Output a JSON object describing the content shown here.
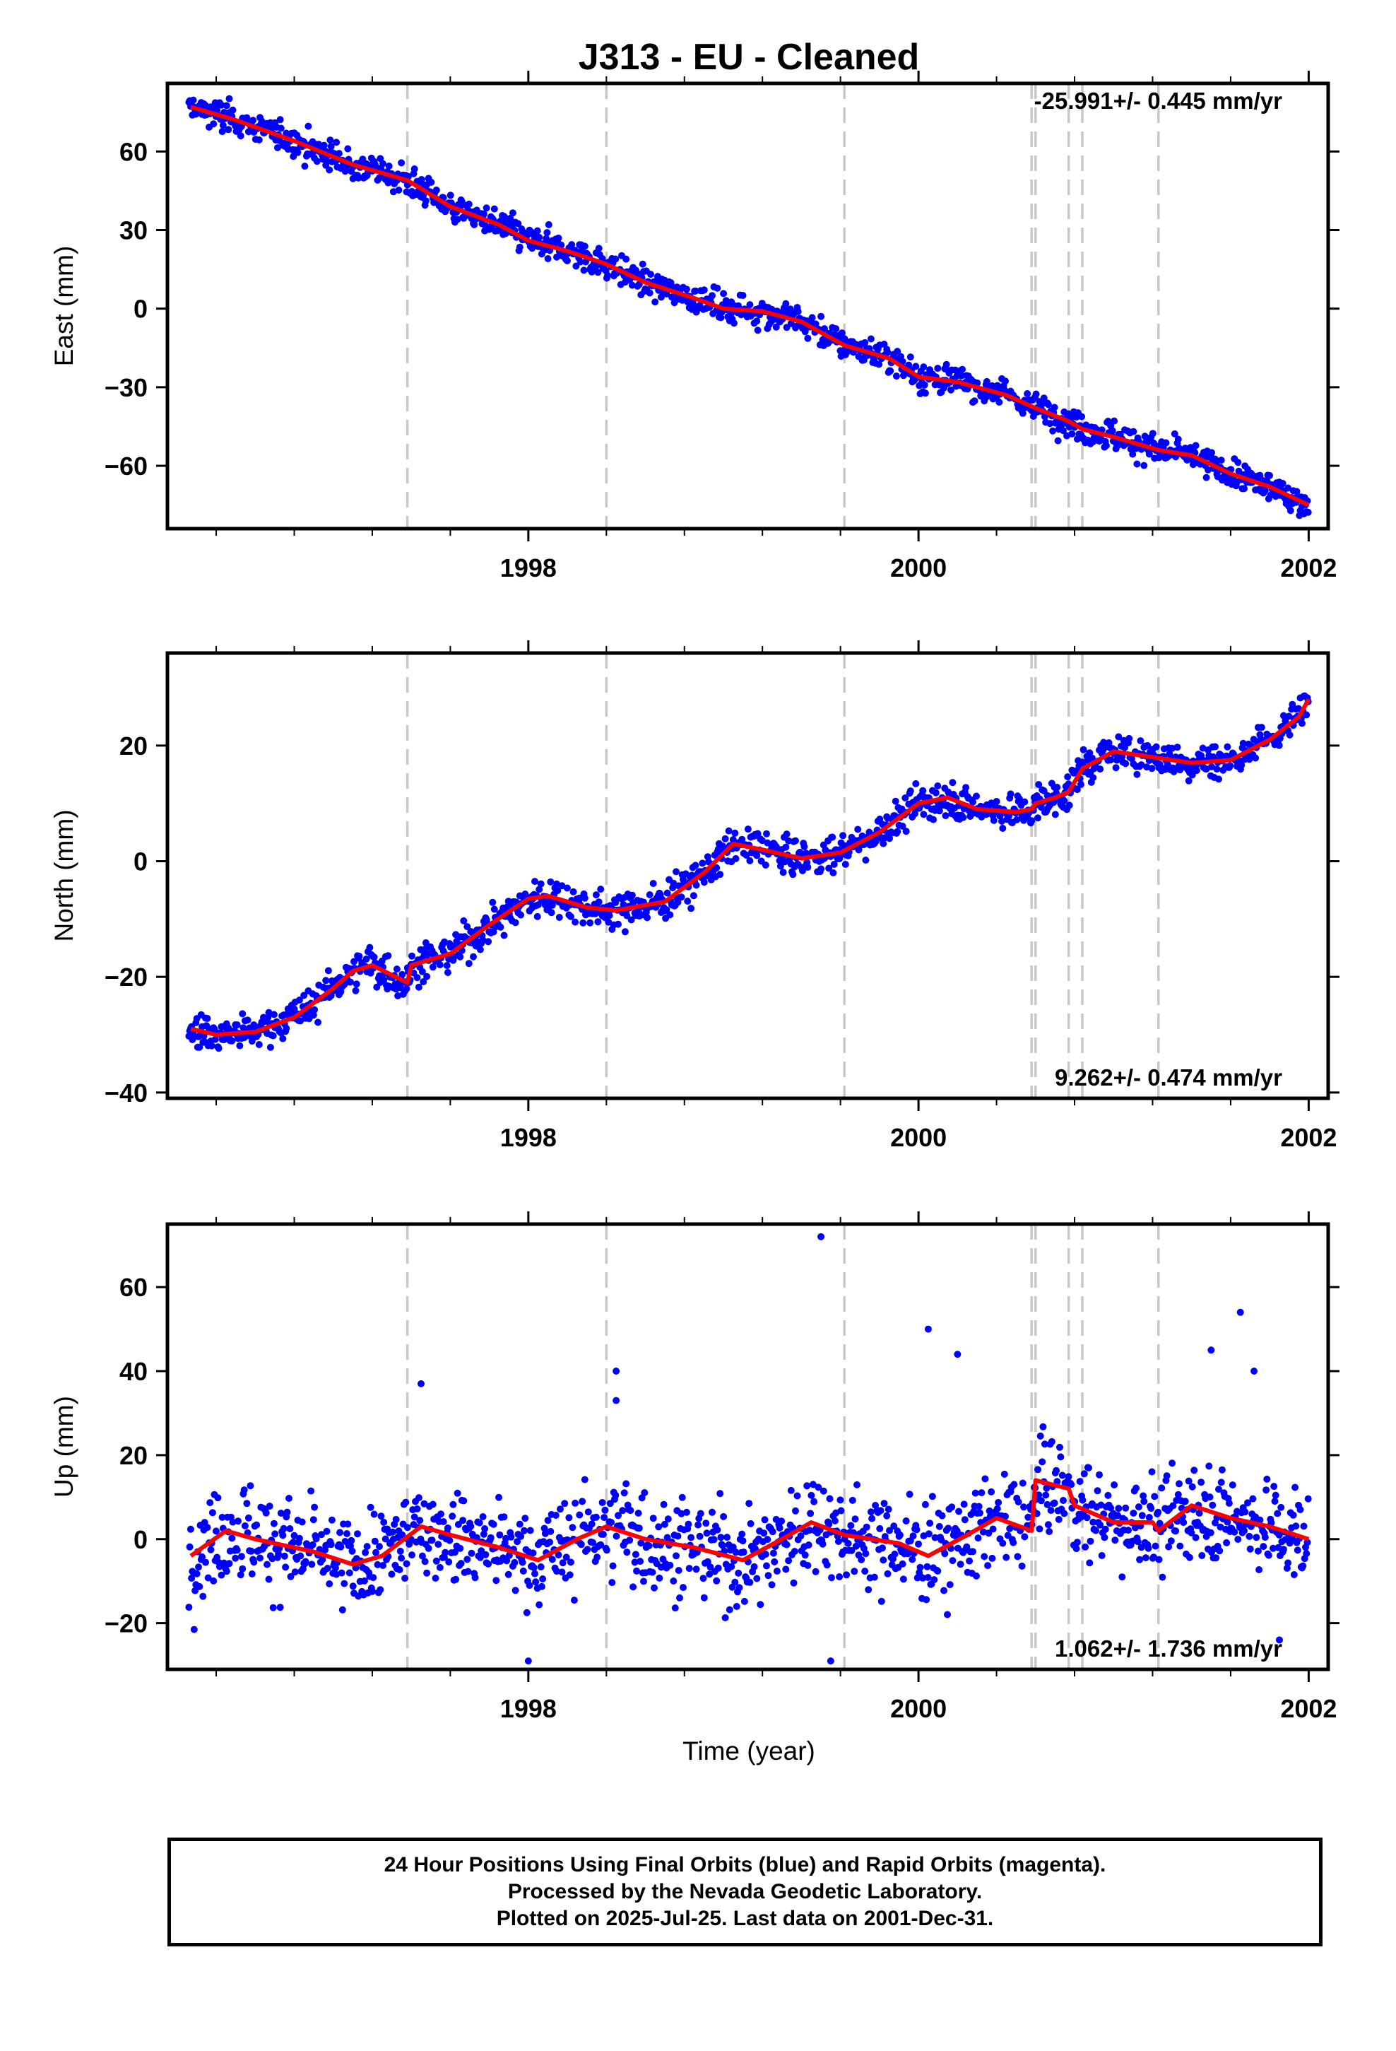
{
  "title": "J313  - EU - Cleaned",
  "x_axis": {
    "label": "Time (year)",
    "ticks": [
      1998,
      2000,
      2002
    ]
  },
  "colors": {
    "final_orbits": "#0000ff",
    "model": "#ff0000",
    "steps": "#c8c8c8"
  },
  "footer": {
    "line1": "24 Hour Positions Using Final Orbits (blue) and Rapid Orbits (magenta).",
    "line2": "Processed by the Nevada Geodetic Laboratory.",
    "line3": "Plotted on 2025-Jul-25. Last data on 2001-Dec-31."
  },
  "chart_data": [
    {
      "type": "scatter",
      "ylabel": "East (mm)",
      "rate_text": "-25.991+/- 0.445 mm/yr",
      "rate_position": "top-right",
      "xlim": [
        1996.15,
        2002.1
      ],
      "ylim": [
        -84,
        86
      ],
      "yticks": [
        -60,
        -30,
        0,
        30,
        60
      ],
      "x_ticks": [
        1998,
        2000,
        2002
      ],
      "step_lines": [
        1997.38,
        1998.4,
        1999.62,
        2000.58,
        2000.6,
        2000.77,
        2000.84,
        2001.23
      ],
      "series": [
        {
          "kind": "model",
          "x": [
            1996.27,
            1996.5,
            1996.8,
            1997.1,
            1997.38,
            1997.6,
            1997.85,
            1998.0,
            1998.2,
            1998.4,
            1998.6,
            1998.85,
            1999.0,
            1999.2,
            1999.4,
            1999.62,
            1999.85,
            2000.0,
            2000.2,
            2000.45,
            2000.6,
            2000.77,
            2000.84,
            2001.0,
            2001.23,
            2001.4,
            2001.6,
            2001.8,
            2002.0
          ],
          "y": [
            77,
            72,
            64,
            55,
            49,
            39,
            32,
            26,
            22,
            17,
            10,
            4,
            0,
            -1,
            -5,
            -14,
            -19,
            -26,
            -28,
            -33,
            -38,
            -43,
            -46,
            -49,
            -54,
            -56,
            -63,
            -68,
            -75
          ]
        },
        {
          "kind": "daily",
          "noise": 4,
          "outliers": []
        }
      ]
    },
    {
      "type": "scatter",
      "ylabel": "North (mm)",
      "rate_text": "9.262+/- 0.474 mm/yr",
      "rate_position": "bottom-right",
      "xlim": [
        1996.15,
        2002.1
      ],
      "ylim": [
        -41,
        36
      ],
      "yticks": [
        -40,
        -20,
        0,
        20
      ],
      "x_ticks": [
        1998,
        2000,
        2002
      ],
      "step_lines": [
        1997.38,
        1998.4,
        1999.62,
        2000.58,
        2000.6,
        2000.77,
        2000.84,
        2001.23
      ],
      "series": [
        {
          "kind": "model",
          "x": [
            1996.27,
            1996.4,
            1996.6,
            1996.8,
            1997.0,
            1997.1,
            1997.2,
            1997.38,
            1997.4,
            1997.6,
            1997.8,
            1998.0,
            1998.1,
            1998.3,
            1998.45,
            1998.7,
            1998.9,
            1999.05,
            1999.2,
            1999.4,
            1999.6,
            1999.8,
            2000.0,
            2000.15,
            2000.3,
            2000.5,
            2000.58,
            2000.6,
            2000.7,
            2000.77,
            2000.84,
            2001.0,
            2001.2,
            2001.4,
            2001.6,
            2001.8,
            2001.95,
            2002.0
          ],
          "y": [
            -29,
            -30,
            -29.5,
            -27,
            -22,
            -19,
            -18,
            -21,
            -18,
            -16,
            -11,
            -6.5,
            -6,
            -8,
            -8.5,
            -7,
            -2,
            3,
            2,
            0.5,
            1.5,
            5,
            10,
            11,
            9,
            8.5,
            9,
            10,
            11,
            12,
            16,
            19,
            18,
            17,
            17.5,
            21,
            25,
            28
          ]
        },
        {
          "kind": "daily",
          "noise": 2.2,
          "outliers": []
        }
      ]
    },
    {
      "type": "scatter",
      "ylabel": "Up (mm)",
      "rate_text": "1.062+/- 1.736 mm/yr",
      "rate_position": "bottom-right",
      "xlim": [
        1996.15,
        2002.1
      ],
      "ylim": [
        -31,
        75
      ],
      "yticks": [
        -20,
        0,
        20,
        40,
        60
      ],
      "x_ticks": [
        1998,
        2000,
        2002
      ],
      "step_lines": [
        1997.38,
        1998.4,
        1999.62,
        2000.58,
        2000.6,
        2000.77,
        2000.84,
        2001.23
      ],
      "series": [
        {
          "kind": "model",
          "x": [
            1996.27,
            1996.45,
            1996.6,
            1996.9,
            1997.1,
            1997.25,
            1997.45,
            1997.6,
            1997.85,
            1998.05,
            1998.25,
            1998.4,
            1998.6,
            1998.85,
            1999.1,
            1999.3,
            1999.45,
            1999.62,
            1999.9,
            2000.05,
            2000.25,
            2000.4,
            2000.58,
            2000.6,
            2000.77,
            2000.8,
            2001.0,
            2001.2,
            2001.23,
            2001.4,
            2001.6,
            2001.8,
            2002.0
          ],
          "y": [
            -4,
            2,
            0,
            -3,
            -6,
            -4,
            3,
            1,
            -2,
            -5,
            0,
            3,
            0,
            -2,
            -5,
            0,
            4,
            1,
            -1,
            -4,
            1,
            5,
            2,
            14,
            12,
            8,
            4,
            4,
            2,
            8,
            5,
            3,
            0
          ]
        },
        {
          "kind": "daily",
          "noise": 8,
          "outliers": [
            [
              1999.5,
              72
            ],
            [
              2000.05,
              50
            ],
            [
              2000.2,
              44
            ],
            [
              2001.65,
              54
            ],
            [
              1998.45,
              40
            ],
            [
              2001.5,
              45
            ],
            [
              1997.45,
              37
            ],
            [
              1998.45,
              33
            ],
            [
              2001.72,
              40
            ],
            [
              1998.0,
              -29
            ],
            [
              1999.55,
              -29
            ],
            [
              2001.85,
              -24
            ]
          ]
        }
      ]
    }
  ]
}
